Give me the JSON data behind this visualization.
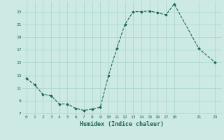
{
  "x_all": [
    0,
    1,
    2,
    3,
    4,
    5,
    6,
    7,
    8,
    9,
    10,
    11,
    12,
    13,
    14,
    15,
    16,
    17,
    18,
    21,
    23
  ],
  "y_all": [
    12.5,
    11.5,
    10.0,
    9.8,
    8.5,
    8.5,
    7.8,
    7.5,
    7.7,
    8.0,
    13.0,
    17.2,
    21.0,
    23.0,
    23.0,
    23.1,
    22.8,
    22.5,
    24.2,
    17.2,
    15.0
  ],
  "xlim": [
    -0.5,
    23.8
  ],
  "ylim": [
    6.8,
    24.6
  ],
  "yticks": [
    7,
    9,
    11,
    13,
    15,
    17,
    19,
    21,
    23
  ],
  "xticks": [
    0,
    1,
    2,
    3,
    4,
    5,
    6,
    7,
    8,
    9,
    10,
    11,
    12,
    13,
    14,
    15,
    16,
    17,
    18,
    21,
    23
  ],
  "xlabel": "Humidex (Indice chaleur)",
  "background_color": "#cce9e4",
  "grid_color": "#a8d4cc",
  "line_color": "#1a6655",
  "marker_color": "#1a6655",
  "text_color": "#1a6655"
}
